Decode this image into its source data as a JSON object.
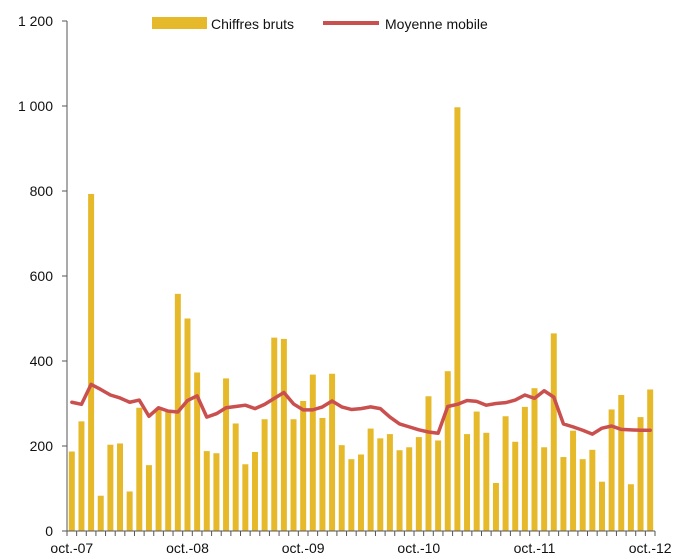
{
  "chart_data": {
    "type": "bar",
    "title": "",
    "xlabel": "",
    "ylabel": "",
    "ylim": [
      0,
      1200
    ],
    "yticks": [
      0,
      200,
      400,
      600,
      800,
      1000,
      1200
    ],
    "ytick_labels": [
      "0",
      "200",
      "400",
      "600",
      "800",
      "1 000",
      "1 200"
    ],
    "xtick_labels": [
      "oct.-07",
      "oct.-08",
      "oct.-09",
      "oct.-10",
      "oct.-11",
      "oct.-12"
    ],
    "grid": false,
    "legend_position": "top",
    "categories": [
      "oct.-07",
      "nov.-07",
      "déc.-07",
      "janv.-08",
      "févr.-08",
      "mars-08",
      "avr.-08",
      "mai-08",
      "juin-08",
      "juil.-08",
      "août-08",
      "sept.-08",
      "oct.-08",
      "nov.-08",
      "déc.-08",
      "janv.-09",
      "févr.-09",
      "mars-09",
      "avr.-09",
      "mai-09",
      "juin-09",
      "juil.-09",
      "août-09",
      "sept.-09",
      "oct.-09",
      "nov.-09",
      "déc.-09",
      "janv.-10",
      "févr.-10",
      "mars-10",
      "avr.-10",
      "mai-10",
      "juin-10",
      "juil.-10",
      "août-10",
      "sept.-10",
      "oct.-10",
      "nov.-10",
      "déc.-10",
      "janv.-11",
      "févr.-11",
      "mars-11",
      "avr.-11",
      "mai-11",
      "juin-11",
      "juil.-11",
      "août-11",
      "sept.-11",
      "oct.-11",
      "nov.-11",
      "déc.-11",
      "janv.-12",
      "févr.-12",
      "mars-12",
      "avr.-12",
      "mai-12",
      "juin-12",
      "juil.-12",
      "août-12",
      "sept.-12",
      "oct.-12"
    ],
    "series": [
      {
        "name": "Chiffres bruts",
        "kind": "bar",
        "color": "#E6B92B",
        "values": [
          187,
          258,
          793,
          83,
          203,
          206,
          93,
          290,
          155,
          288,
          280,
          558,
          500,
          373,
          188,
          183,
          359,
          253,
          157,
          186,
          263,
          455,
          452,
          263,
          306,
          368,
          266,
          370,
          202,
          169,
          180,
          241,
          218,
          228,
          190,
          197,
          221,
          317,
          213,
          376,
          997,
          228,
          281,
          231,
          113,
          270,
          210,
          292,
          336,
          197,
          465,
          174,
          236,
          169,
          191,
          116,
          286,
          320,
          110,
          268,
          333
        ]
      },
      {
        "name": "Moyenne mobile",
        "kind": "line",
        "color": "#C9504E",
        "values": [
          303,
          298,
          345,
          333,
          320,
          313,
          303,
          308,
          270,
          290,
          282,
          280,
          307,
          318,
          268,
          276,
          290,
          293,
          296,
          288,
          298,
          312,
          326,
          299,
          285,
          285,
          292,
          306,
          292,
          286,
          288,
          292,
          288,
          268,
          252,
          245,
          238,
          233,
          230,
          293,
          298,
          307,
          305,
          296,
          300,
          302,
          308,
          320,
          312,
          330,
          315,
          252,
          245,
          237,
          228,
          242,
          247,
          239,
          238,
          237,
          237
        ]
      }
    ]
  }
}
